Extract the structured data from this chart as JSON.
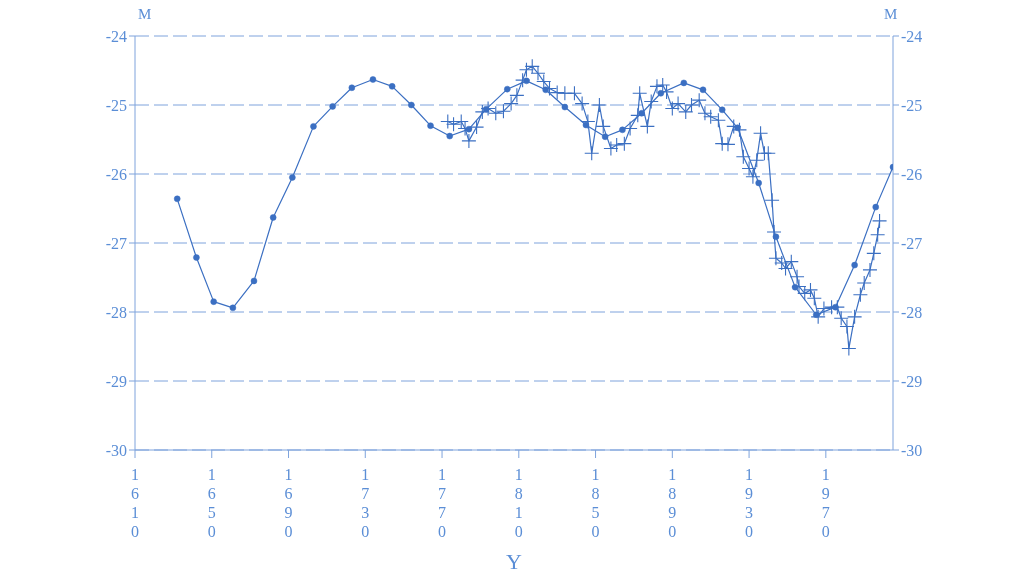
{
  "chart_data": {
    "type": "line",
    "xlabel": "Y",
    "ylabel": "M",
    "y2label": "M",
    "xlim": [
      1610,
      2005
    ],
    "xticks": [
      1610,
      1650,
      1690,
      1730,
      1770,
      1810,
      1850,
      1890,
      1930,
      1970
    ],
    "ylim": [
      -30,
      -24
    ],
    "yticks": [
      -30,
      -29,
      -28,
      -27,
      -26,
      -25,
      -24
    ],
    "y2lim": [
      -30,
      -24
    ],
    "y2ticks": [
      -30,
      -29,
      -28,
      -27,
      -26,
      -25,
      -24
    ],
    "grid": "y",
    "line_style": "solid",
    "series": [
      {
        "color": "#3b6fc2",
        "marker": "circle",
        "x": [
          1632,
          1642,
          1651,
          1661,
          1672,
          1682,
          1692,
          1703,
          1713,
          1723,
          1734,
          1744,
          1754,
          1764,
          1774,
          1784,
          1793,
          1804,
          1814,
          1824,
          1834,
          1845,
          1855,
          1864,
          1874,
          1884,
          1896,
          1906,
          1916,
          1924,
          1935,
          1944,
          1954,
          1965,
          1975,
          1985,
          1996,
          2005
        ],
        "values": [
          -26.36,
          -27.21,
          -27.85,
          -27.94,
          -27.55,
          -26.63,
          -26.05,
          -25.31,
          -25.02,
          -24.75,
          -24.63,
          -24.73,
          -25.0,
          -25.3,
          -25.45,
          -25.35,
          -25.06,
          -24.77,
          -24.65,
          -24.78,
          -25.03,
          -25.29,
          -25.46,
          -25.36,
          -25.12,
          -24.83,
          -24.68,
          -24.78,
          -25.07,
          -25.33,
          -26.13,
          -26.91,
          -27.64,
          -28.04,
          -27.93,
          -27.32,
          -26.48,
          -25.9
        ]
      },
      {
        "color": "#3b6fc2",
        "marker": "cross",
        "x": [
          1773,
          1776,
          1780,
          1782,
          1784,
          1788,
          1791,
          1794,
          1798,
          1802,
          1806,
          1809,
          1812,
          1814,
          1817,
          1820,
          1823,
          1826,
          1830,
          1834,
          1839,
          1843,
          1846,
          1848,
          1852,
          1854,
          1858,
          1861,
          1865,
          1868,
          1872,
          1873,
          1877,
          1879,
          1882,
          1885,
          1887,
          1890,
          1893,
          1897,
          1900,
          1904,
          1907,
          1910,
          1914,
          1916,
          1919,
          1922,
          1925,
          1927,
          1930,
          1932,
          1934,
          1936,
          1938,
          1940,
          1942,
          1943,
          1944,
          1947,
          1949,
          1952,
          1955,
          1956,
          1959,
          1962,
          1964,
          1966,
          1969,
          1973,
          1976,
          1978,
          1981,
          1982,
          1985,
          1988,
          1990,
          1993,
          1995,
          1997,
          1998
        ],
        "values": [
          -25.24,
          -25.28,
          -25.24,
          -25.34,
          -25.52,
          -25.32,
          -25.1,
          -25.05,
          -25.12,
          -25.09,
          -24.98,
          -24.86,
          -24.64,
          -24.49,
          -24.44,
          -24.54,
          -24.66,
          -24.76,
          -24.82,
          -24.83,
          -24.83,
          -24.98,
          -25.24,
          -25.7,
          -25.0,
          -25.31,
          -25.63,
          -25.58,
          -25.56,
          -25.34,
          -25.15,
          -24.83,
          -25.31,
          -24.95,
          -24.73,
          -24.71,
          -24.81,
          -25.05,
          -24.98,
          -25.1,
          -25.0,
          -24.93,
          -25.12,
          -25.17,
          -25.22,
          -25.56,
          -25.57,
          -25.31,
          -25.36,
          -25.75,
          -25.92,
          -26.04,
          -25.8,
          -25.41,
          -25.7,
          -25.7,
          -26.38,
          -26.84,
          -27.22,
          -27.29,
          -27.37,
          -27.27,
          -27.49,
          -27.63,
          -27.73,
          -27.68,
          -27.8,
          -28.07,
          -27.95,
          -27.93,
          -27.93,
          -28.09,
          -28.21,
          -28.53,
          -28.07,
          -27.75,
          -27.58,
          -27.39,
          -27.15,
          -26.88,
          -26.68
        ]
      }
    ]
  }
}
